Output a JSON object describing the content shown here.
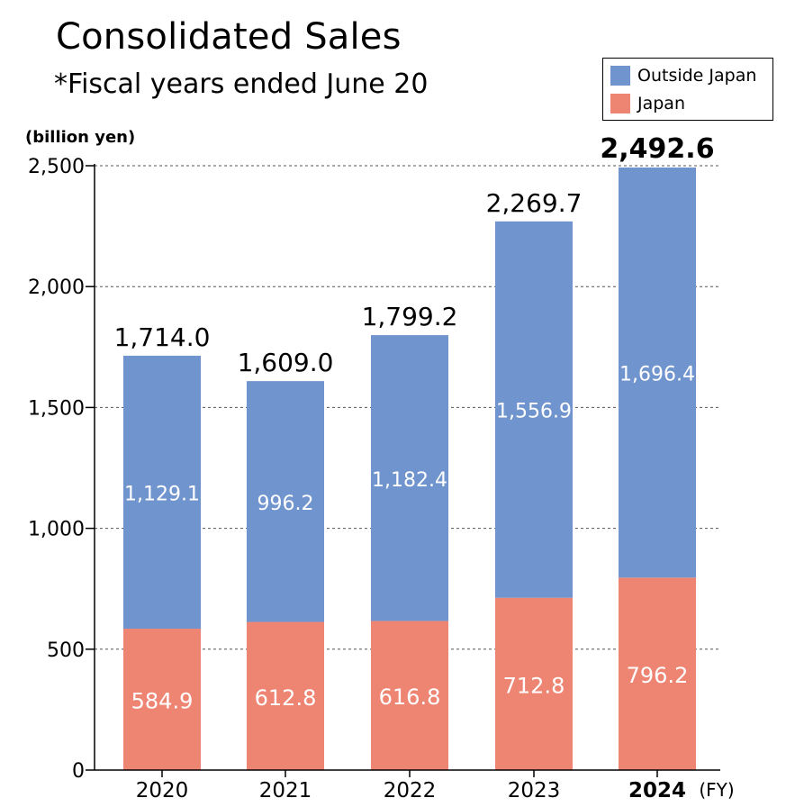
{
  "chart_title": "Consolidated Sales",
  "chart_subtitle": "*Fiscal years ended June 20",
  "unit_label": "(billion yen)",
  "legend": {
    "items": [
      {
        "label": "Outside Japan",
        "color": "#7094cd"
      },
      {
        "label": "Japan",
        "color": "#ee8573"
      }
    ],
    "placement": "top-right"
  },
  "chart_data": {
    "type": "bar",
    "stacked": true,
    "categories": [
      "2020",
      "2021",
      "2022",
      "2023",
      "2024"
    ],
    "highlight_category": "2024",
    "x_unit_label": "(FY)",
    "ylabel": "(billion yen)",
    "ylim": [
      0,
      2500
    ],
    "yticks": [
      0,
      500,
      1000,
      1500,
      2000,
      2500
    ],
    "ytick_labels": [
      "0",
      "500",
      "1,000",
      "1,500",
      "2,000",
      "2,500"
    ],
    "grid": "horizontal dotted",
    "series": [
      {
        "name": "Japan",
        "color": "#ee8573",
        "values": [
          584.9,
          612.8,
          616.8,
          712.8,
          796.2
        ],
        "labels": [
          "584.9",
          "612.8",
          "616.8",
          "712.8",
          "796.2"
        ]
      },
      {
        "name": "Outside Japan",
        "color": "#7094cd",
        "values": [
          1129.1,
          996.2,
          1182.4,
          1556.9,
          1696.4
        ],
        "labels": [
          "1,129.1",
          "996.2",
          "1,182.4",
          "1,556.9",
          "1,696.4"
        ]
      }
    ],
    "totals": [
      1714.0,
      1609.0,
      1799.2,
      2269.7,
      2492.6
    ],
    "total_labels": [
      "1,714.0",
      "1,609.0",
      "1,799.2",
      "2,269.7",
      "2,492.6"
    ]
  }
}
